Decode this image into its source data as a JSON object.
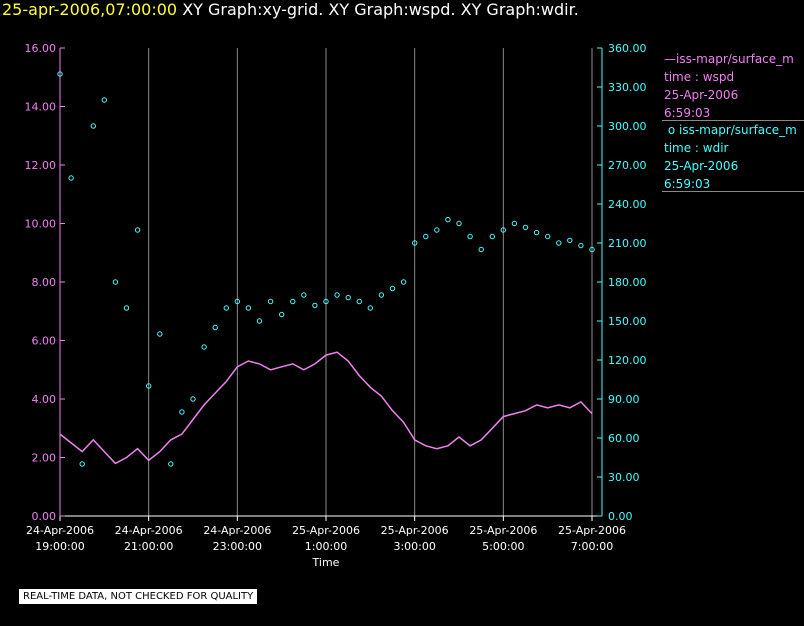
{
  "header": {
    "timestamp": "25-apr-2006,07:00:00",
    "graphs": "XY Graph:xy-grid.  XY Graph:wspd.  XY Graph:wdir."
  },
  "legend": [
    {
      "label": "iss-mapr/surface_m",
      "line1": "time : wspd",
      "line2": "25-Apr-2006",
      "line3": "6:59:03",
      "color": "#ee82ee",
      "marker": "line"
    },
    {
      "label": "iss-mapr/surface_m",
      "line1": "time : wdir",
      "line2": "25-Apr-2006",
      "line3": "6:59:03",
      "color": "#44ffff",
      "marker": "circle"
    }
  ],
  "disclaimer": "REAL-TIME DATA, NOT CHECKED FOR QUALITY",
  "colors": {
    "wspd": "#ee82ee",
    "wdir": "#44ffff",
    "grid": "#8c8c8c",
    "axis": "#ffffff"
  },
  "chart_data": {
    "type": "line",
    "title": "XY Graph",
    "xlabel": "Time",
    "x_range_hours": [
      0,
      12
    ],
    "x_start": "24-Apr-2006 19:00:00",
    "x_ticks": [
      {
        "hour": 0,
        "date": "24-Apr-2006",
        "time": "19:00:00"
      },
      {
        "hour": 2,
        "date": "24-Apr-2006",
        "time": "21:00:00"
      },
      {
        "hour": 4,
        "date": "24-Apr-2006",
        "time": "23:00:00"
      },
      {
        "hour": 6,
        "date": "25-Apr-2006",
        "time": "1:00:00"
      },
      {
        "hour": 8,
        "date": "25-Apr-2006",
        "time": "3:00:00"
      },
      {
        "hour": 10,
        "date": "25-Apr-2006",
        "time": "5:00:00"
      },
      {
        "hour": 12,
        "date": "25-Apr-2006",
        "time": "7:00:00"
      }
    ],
    "left_axis": {
      "name": "wspd",
      "range": [
        0,
        16
      ],
      "ticks": [
        "0.00",
        "2.00",
        "4.00",
        "6.00",
        "8.00",
        "10.00",
        "12.00",
        "14.00",
        "16.00"
      ]
    },
    "right_axis": {
      "name": "wdir",
      "range": [
        0,
        360
      ],
      "ticks": [
        "0.00",
        "30.00",
        "60.00",
        "90.00",
        "120.00",
        "150.00",
        "180.00",
        "210.00",
        "240.00",
        "270.00",
        "300.00",
        "330.00",
        "360.00"
      ]
    },
    "grid": "vertical",
    "series": [
      {
        "name": "wspd",
        "axis": "left",
        "style": "line",
        "x": [
          0,
          0.25,
          0.5,
          0.75,
          1,
          1.25,
          1.5,
          1.75,
          2,
          2.25,
          2.5,
          2.75,
          3,
          3.25,
          3.5,
          3.75,
          4,
          4.25,
          4.5,
          4.75,
          5,
          5.25,
          5.5,
          5.75,
          6,
          6.25,
          6.5,
          6.75,
          7,
          7.25,
          7.5,
          7.75,
          8,
          8.25,
          8.5,
          8.75,
          9,
          9.25,
          9.5,
          9.75,
          10,
          10.25,
          10.5,
          10.75,
          11,
          11.25,
          11.5,
          11.75,
          12
        ],
        "values": [
          2.8,
          2.5,
          2.2,
          2.6,
          2.2,
          1.8,
          2.0,
          2.3,
          1.9,
          2.2,
          2.6,
          2.8,
          3.3,
          3.8,
          4.2,
          4.6,
          5.1,
          5.3,
          5.2,
          5.0,
          5.1,
          5.2,
          5.0,
          5.2,
          5.5,
          5.6,
          5.3,
          4.8,
          4.4,
          4.1,
          3.6,
          3.2,
          2.6,
          2.4,
          2.3,
          2.4,
          2.7,
          2.4,
          2.6,
          3.0,
          3.4,
          3.5,
          3.6,
          3.8,
          3.7,
          3.8,
          3.7,
          3.9,
          3.5
        ]
      },
      {
        "name": "wdir",
        "axis": "right",
        "style": "scatter",
        "x": [
          0,
          0.25,
          0.5,
          0.75,
          1,
          1.25,
          1.5,
          1.75,
          2,
          2.25,
          2.5,
          2.75,
          3,
          3.25,
          3.5,
          3.75,
          4,
          4.25,
          4.5,
          4.75,
          5,
          5.25,
          5.5,
          5.75,
          6,
          6.25,
          6.5,
          6.75,
          7,
          7.25,
          7.5,
          7.75,
          8,
          8.25,
          8.5,
          8.75,
          9,
          9.25,
          9.5,
          9.75,
          10,
          10.25,
          10.5,
          10.75,
          11,
          11.25,
          11.5,
          11.75,
          12
        ],
        "values": [
          340,
          260,
          40,
          300,
          320,
          180,
          160,
          220,
          100,
          140,
          40,
          80,
          90,
          130,
          145,
          160,
          165,
          160,
          150,
          165,
          155,
          165,
          170,
          162,
          165,
          170,
          168,
          165,
          160,
          170,
          175,
          180,
          210,
          215,
          220,
          228,
          225,
          215,
          205,
          215,
          220,
          225,
          222,
          218,
          215,
          210,
          212,
          208,
          205
        ]
      }
    ]
  }
}
